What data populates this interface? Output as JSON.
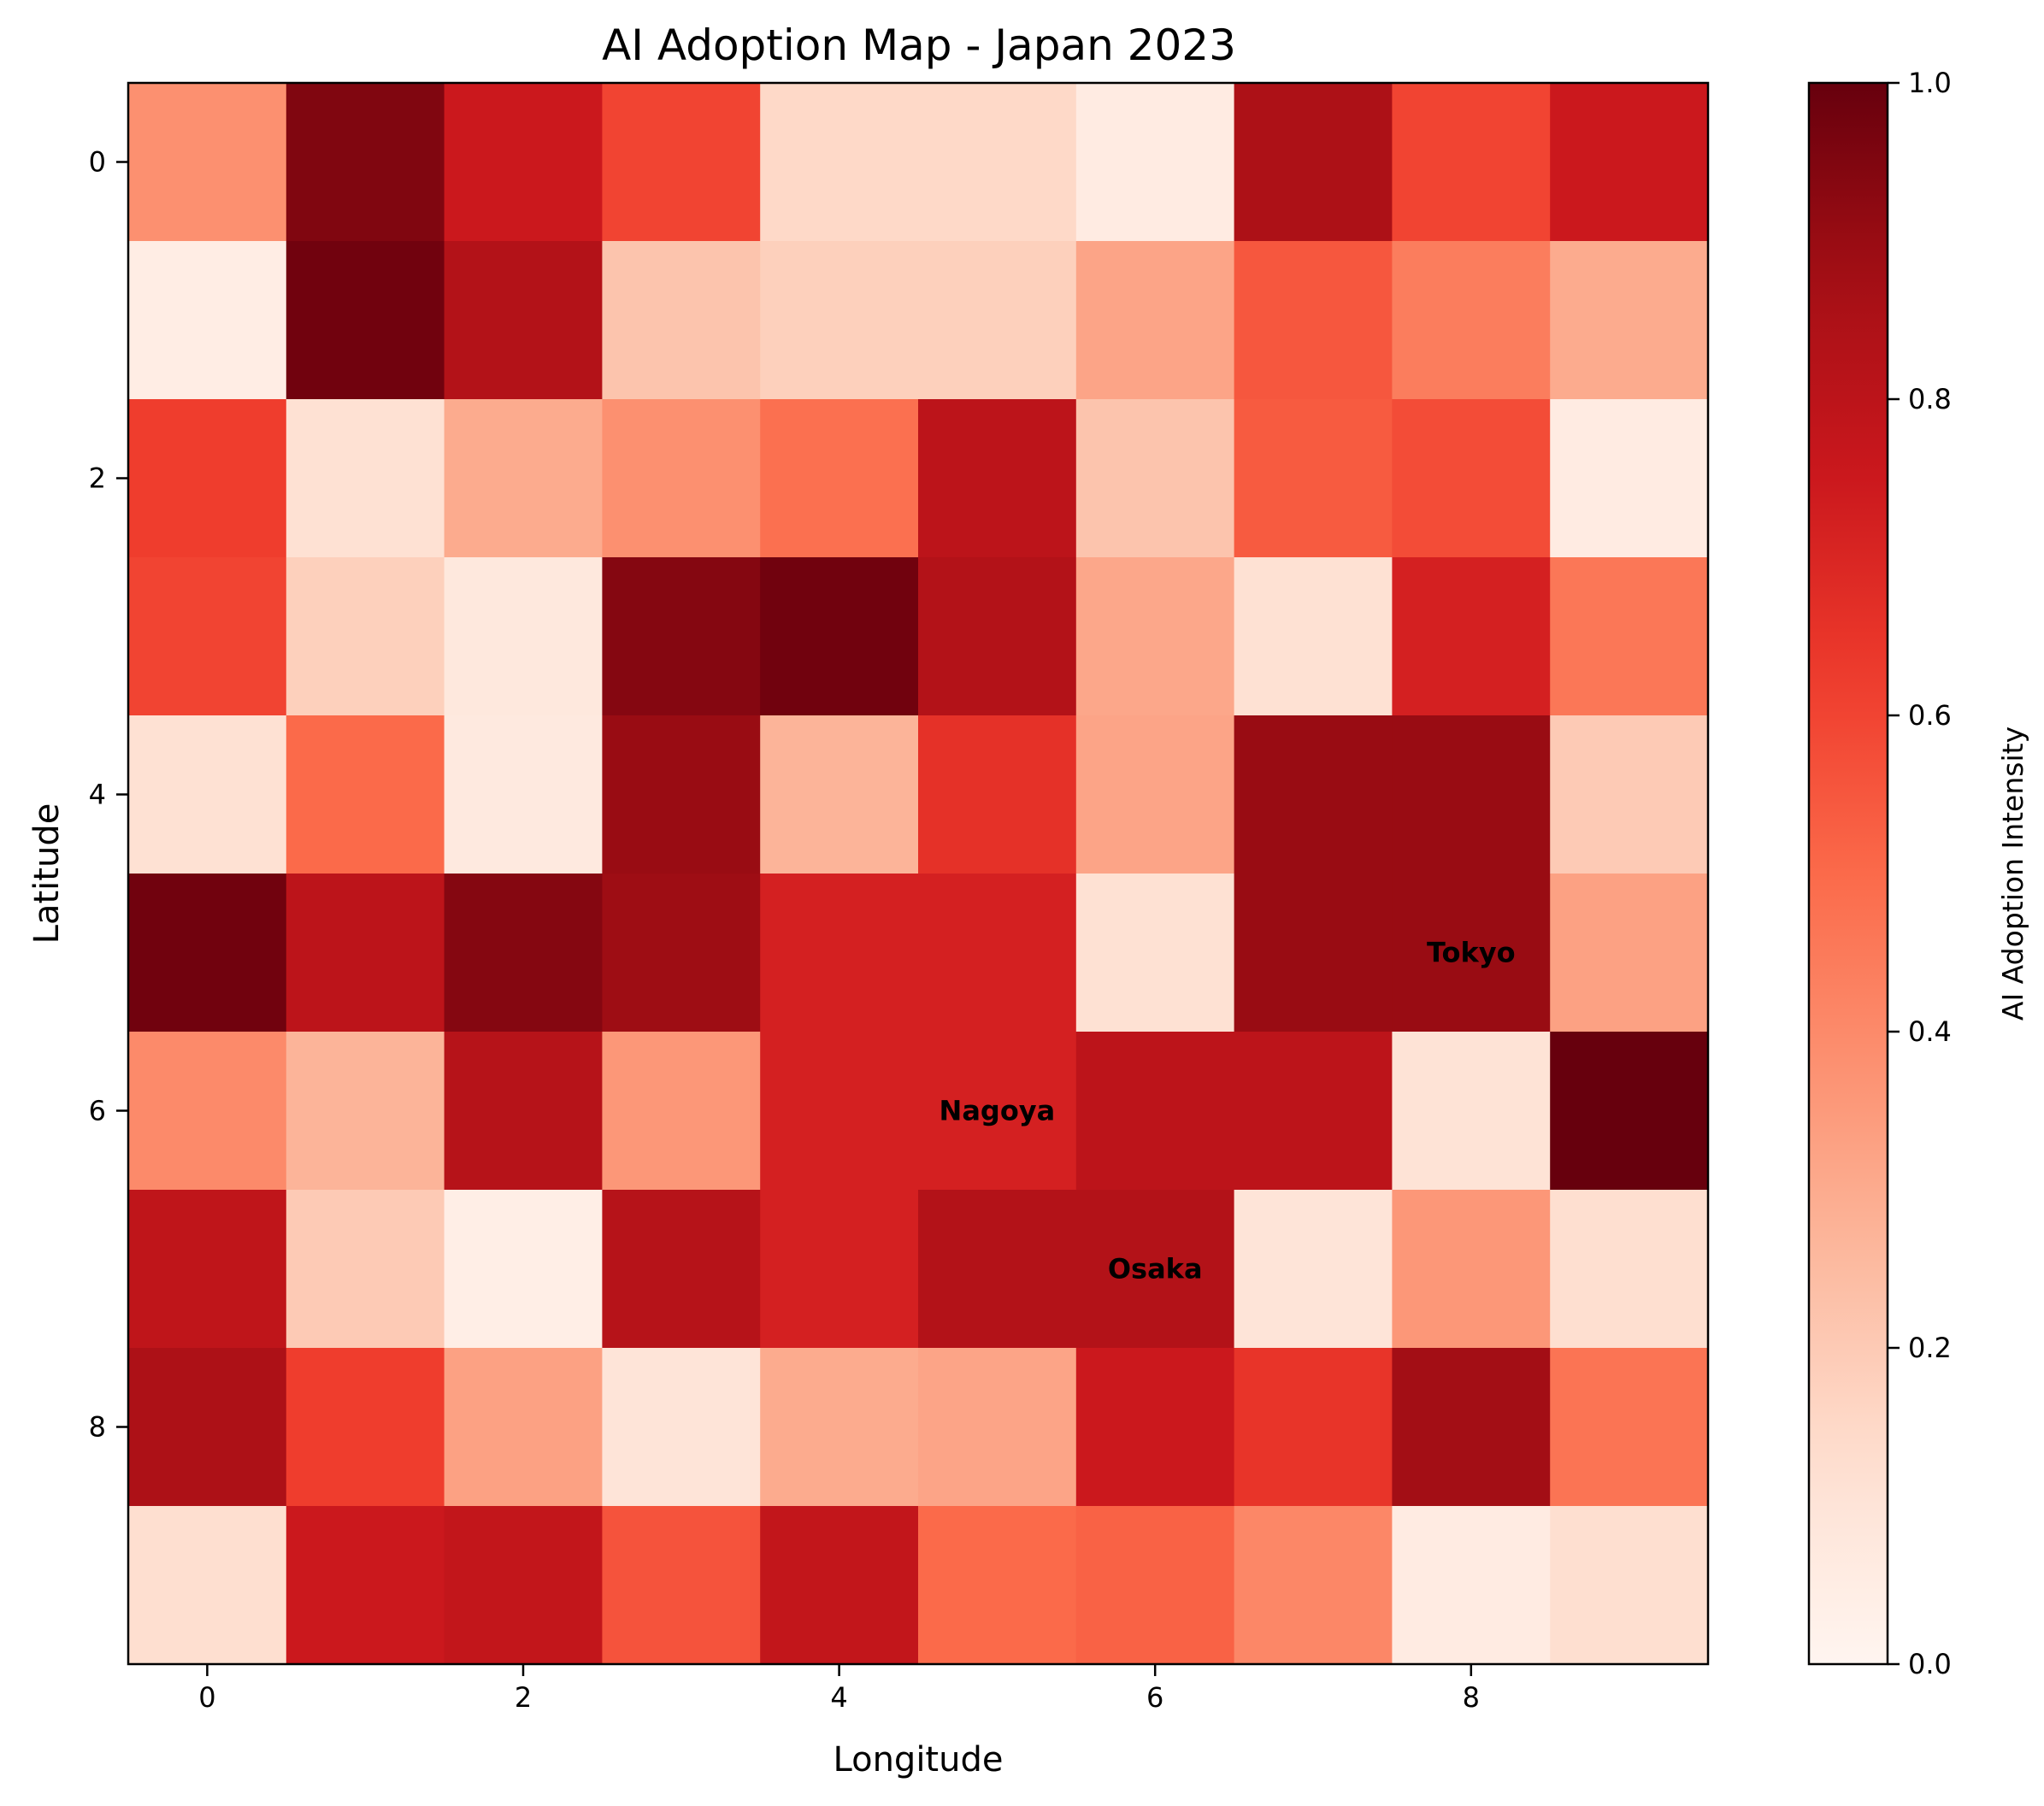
{
  "chart_data": {
    "type": "heatmap",
    "title": "AI Adoption Map - Japan 2023",
    "xlabel": "Longitude",
    "ylabel": "Latitude",
    "colorbar_label": "AI Adoption Intensity",
    "colormap": "Reds",
    "color_range": [
      0.0,
      1.0
    ],
    "x_ticks": [
      0,
      2,
      4,
      6,
      8
    ],
    "y_ticks": [
      0,
      2,
      4,
      6,
      8
    ],
    "colorbar_ticks": [
      "0.0",
      "0.2",
      "0.4",
      "0.6",
      "0.8",
      "1.0"
    ],
    "colorbar_tick_values": [
      0.0,
      0.2,
      0.4,
      0.6,
      0.8,
      1.0
    ],
    "grid": false,
    "x_range": [
      -0.5,
      9.5
    ],
    "y_range": [
      -0.5,
      9.5
    ],
    "values": [
      [
        0.38,
        0.95,
        0.75,
        0.6,
        0.15,
        0.15,
        0.06,
        0.85,
        0.6,
        0.75
      ],
      [
        0.05,
        0.98,
        0.83,
        0.22,
        0.18,
        0.18,
        0.32,
        0.55,
        0.44,
        0.3
      ],
      [
        0.62,
        0.12,
        0.3,
        0.38,
        0.48,
        0.8,
        0.22,
        0.54,
        0.58,
        0.06
      ],
      [
        0.6,
        0.18,
        0.08,
        0.94,
        0.98,
        0.83,
        0.31,
        0.12,
        0.72,
        0.46
      ],
      [
        0.12,
        0.5,
        0.07,
        0.9,
        0.27,
        0.66,
        0.32,
        0.9,
        0.9,
        0.2
      ],
      [
        0.98,
        0.8,
        0.94,
        0.89,
        0.72,
        0.72,
        0.12,
        0.9,
        0.9,
        0.33
      ],
      [
        0.4,
        0.27,
        0.82,
        0.36,
        0.72,
        0.72,
        0.8,
        0.8,
        0.11,
        1.0
      ],
      [
        0.79,
        0.2,
        0.04,
        0.82,
        0.72,
        0.83,
        0.83,
        0.1,
        0.36,
        0.13
      ],
      [
        0.85,
        0.62,
        0.33,
        0.1,
        0.3,
        0.32,
        0.75,
        0.65,
        0.88,
        0.47
      ],
      [
        0.13,
        0.75,
        0.78,
        0.56,
        0.78,
        0.5,
        0.52,
        0.41,
        0.06,
        0.13
      ]
    ],
    "annotations": [
      {
        "text": "Tokyo",
        "x": 8,
        "y": 5
      },
      {
        "text": "Nagoya",
        "x": 5,
        "y": 6
      },
      {
        "text": "Osaka",
        "x": 6,
        "y": 7
      }
    ]
  }
}
